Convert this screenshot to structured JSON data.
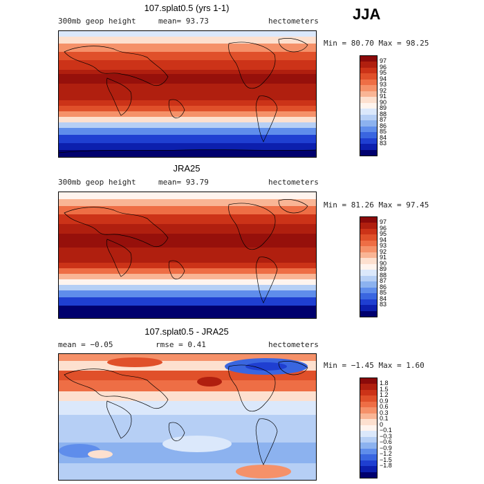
{
  "season": "JJA",
  "panels": [
    {
      "title": "107.splat0.5 (yrs 1-1)",
      "left_label": "300mb geop height",
      "mid_label": "mean=  93.73",
      "units": "hectometers",
      "minmax": "Min =  80.70 Max =  98.25",
      "colorbar": {
        "labels": [
          "97",
          "96",
          "95",
          "94",
          "93",
          "92",
          "91",
          "90",
          "89",
          "88",
          "87",
          "86",
          "85",
          "84",
          "83"
        ],
        "colors": [
          "#8b0a0a",
          "#b01f0f",
          "#cc3318",
          "#e0502a",
          "#ee6e45",
          "#f59169",
          "#f9b595",
          "#fde0cf",
          "#fff4ee",
          "#dbe8fb",
          "#b6cff5",
          "#8cb2ef",
          "#5f8deb",
          "#3a66e0",
          "#1f3fd1",
          "#0c1fae",
          "#00006e"
        ]
      }
    },
    {
      "title": "JRA25",
      "left_label": "300mb geop height",
      "mid_label": "mean=  93.79",
      "units": "hectometers",
      "minmax": "Min =  81.26 Max =  97.45",
      "colorbar": {
        "labels": [
          "97",
          "96",
          "95",
          "94",
          "93",
          "92",
          "91",
          "90",
          "89",
          "88",
          "87",
          "86",
          "85",
          "84",
          "83"
        ],
        "colors": [
          "#8b0a0a",
          "#b01f0f",
          "#cc3318",
          "#e0502a",
          "#ee6e45",
          "#f59169",
          "#f9b595",
          "#fde0cf",
          "#fff4ee",
          "#dbe8fb",
          "#b6cff5",
          "#8cb2ef",
          "#5f8deb",
          "#3a66e0",
          "#1f3fd1",
          "#0c1fae",
          "#00006e"
        ]
      }
    },
    {
      "title": "107.splat0.5 - JRA25",
      "left_label": "mean =  −0.05",
      "mid_label": "rmse =   0.41",
      "units": "hectometers",
      "minmax": "Min =  −1.45 Max =   1.60",
      "colorbar": {
        "labels": [
          "1.8",
          "1.5",
          "1.2",
          "0.9",
          "0.6",
          "0.3",
          "0.1",
          "0",
          "−0.1",
          "−0.3",
          "−0.6",
          "−0.9",
          "−1.2",
          "−1.5",
          "−1.8"
        ],
        "colors": [
          "#8b0a0a",
          "#b01f0f",
          "#cc3318",
          "#e0502a",
          "#ee6e45",
          "#f59169",
          "#f9b595",
          "#fde0cf",
          "#fff4ee",
          "#dbe8fb",
          "#b6cff5",
          "#8cb2ef",
          "#5f8deb",
          "#3a66e0",
          "#1f3fd1",
          "#0c1fae",
          "#00006e"
        ]
      }
    }
  ]
}
